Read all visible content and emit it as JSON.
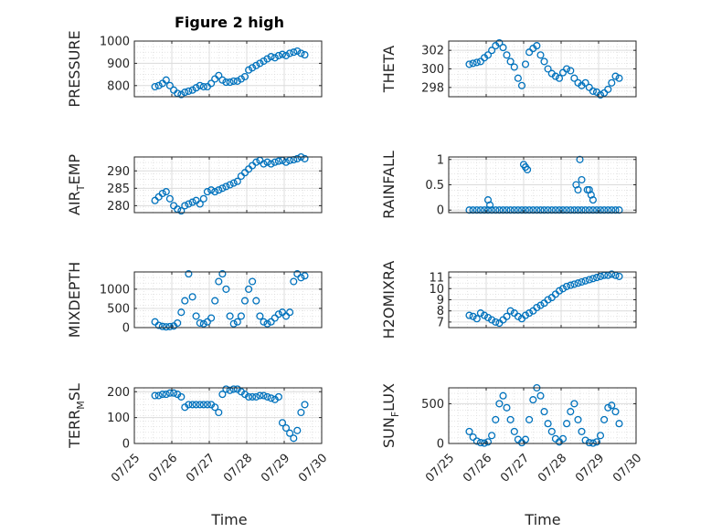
{
  "figure": {
    "title": "Figure 2 high",
    "xlabel": "Time",
    "x_tick_labels": [
      "07/25",
      "07/26",
      "07/27",
      "07/28",
      "07/29",
      "07/30"
    ]
  },
  "chart_data": [
    {
      "type": "scatter",
      "ylabel_main": "PRESSURE",
      "ylabel_sub": "",
      "ylabel_tail": "",
      "ylim": [
        750,
        1000
      ],
      "yticks": [
        800,
        900,
        1000
      ],
      "x": [
        0.55,
        0.65,
        0.75,
        0.85,
        0.95,
        1.05,
        1.15,
        1.25,
        1.35,
        1.45,
        1.55,
        1.65,
        1.75,
        1.85,
        1.95,
        2.05,
        2.15,
        2.25,
        2.35,
        2.45,
        2.55,
        2.65,
        2.75,
        2.85,
        2.95,
        3.05,
        3.15,
        3.25,
        3.35,
        3.45,
        3.55,
        3.65,
        3.75,
        3.85,
        3.95,
        4.05,
        4.15,
        4.25,
        4.35,
        4.45,
        4.55
      ],
      "y": [
        795,
        800,
        810,
        825,
        800,
        780,
        765,
        760,
        770,
        775,
        780,
        790,
        800,
        795,
        795,
        810,
        830,
        845,
        825,
        815,
        815,
        820,
        820,
        830,
        840,
        870,
        880,
        890,
        900,
        910,
        920,
        930,
        925,
        935,
        940,
        935,
        945,
        950,
        955,
        945,
        938
      ],
      "grid": true,
      "marker": "circle",
      "color": "#0072bd"
    },
    {
      "type": "scatter",
      "ylabel_main": "THETA",
      "ylabel_sub": "",
      "ylabel_tail": "",
      "ylim": [
        297,
        303
      ],
      "yticks": [
        298,
        300,
        302
      ],
      "x": [
        0.55,
        0.65,
        0.75,
        0.85,
        0.95,
        1.05,
        1.15,
        1.25,
        1.35,
        1.45,
        1.55,
        1.65,
        1.75,
        1.85,
        1.95,
        2.05,
        2.15,
        2.25,
        2.35,
        2.45,
        2.55,
        2.65,
        2.75,
        2.85,
        2.95,
        3.05,
        3.15,
        3.25,
        3.35,
        3.45,
        3.55,
        3.65,
        3.75,
        3.85,
        3.95,
        4.05,
        4.15,
        4.25,
        4.35,
        4.45,
        4.55
      ],
      "y": [
        300.5,
        300.6,
        300.7,
        300.8,
        301.2,
        301.5,
        302.0,
        302.5,
        302.8,
        302.3,
        301.5,
        300.8,
        300.2,
        299.0,
        298.2,
        300.5,
        301.8,
        302.2,
        302.5,
        301.5,
        300.8,
        300.0,
        299.5,
        299.2,
        299.0,
        299.6,
        300.0,
        299.8,
        299.0,
        298.5,
        298.2,
        298.5,
        298.0,
        297.6,
        297.5,
        297.2,
        297.4,
        297.8,
        298.5,
        299.2,
        299.0
      ],
      "grid": true,
      "marker": "circle",
      "color": "#0072bd"
    },
    {
      "type": "scatter",
      "ylabel_main": "AIR",
      "ylabel_sub": "T",
      "ylabel_tail": "EMP",
      "ylim": [
        278,
        294
      ],
      "yticks": [
        280,
        285,
        290
      ],
      "x": [
        0.55,
        0.65,
        0.75,
        0.85,
        0.95,
        1.05,
        1.15,
        1.25,
        1.35,
        1.45,
        1.55,
        1.65,
        1.75,
        1.85,
        1.95,
        2.05,
        2.15,
        2.25,
        2.35,
        2.45,
        2.55,
        2.65,
        2.75,
        2.85,
        2.95,
        3.05,
        3.15,
        3.25,
        3.35,
        3.45,
        3.55,
        3.65,
        3.75,
        3.85,
        3.95,
        4.05,
        4.15,
        4.25,
        4.35,
        4.45,
        4.55
      ],
      "y": [
        281.5,
        282.5,
        283.5,
        284.0,
        282.0,
        280.0,
        279.0,
        278.5,
        280.0,
        280.5,
        281.0,
        281.5,
        280.5,
        282.0,
        284.0,
        284.5,
        284.0,
        284.5,
        285.0,
        285.5,
        286.0,
        286.5,
        287.0,
        288.5,
        289.5,
        290.5,
        291.5,
        292.5,
        293.0,
        292.0,
        292.5,
        292.0,
        292.5,
        292.8,
        293.0,
        292.5,
        293.0,
        293.2,
        293.5,
        294.0,
        293.5
      ],
      "grid": true,
      "marker": "circle",
      "color": "#0072bd"
    },
    {
      "type": "scatter",
      "ylabel_main": "RAINFALL",
      "ylabel_sub": "",
      "ylabel_tail": "",
      "ylim": [
        -0.05,
        1.05
      ],
      "yticks": [
        0,
        0.5,
        1
      ],
      "x": [
        0.55,
        0.65,
        0.75,
        0.85,
        0.95,
        1.05,
        1.15,
        1.25,
        1.35,
        1.45,
        1.55,
        1.65,
        1.75,
        1.85,
        1.95,
        2.05,
        2.15,
        2.25,
        2.35,
        2.45,
        2.55,
        2.65,
        2.75,
        2.85,
        2.95,
        3.05,
        3.15,
        3.25,
        3.35,
        3.45,
        3.55,
        3.65,
        3.75,
        3.85,
        3.95,
        4.05,
        4.15,
        4.25,
        4.35,
        4.45,
        4.55,
        1.05,
        1.1,
        2.0,
        2.05,
        2.1,
        3.4,
        3.45,
        3.5,
        3.55,
        3.7,
        3.75,
        3.8,
        3.85
      ],
      "y": [
        0,
        0,
        0,
        0,
        0,
        0,
        0,
        0,
        0,
        0,
        0,
        0,
        0,
        0,
        0,
        0,
        0,
        0,
        0,
        0,
        0,
        0,
        0,
        0,
        0,
        0,
        0,
        0,
        0,
        0,
        0,
        0,
        0,
        0,
        0,
        0,
        0,
        0,
        0,
        0,
        0,
        0.2,
        0.1,
        0.9,
        0.85,
        0.8,
        0.5,
        0.4,
        1.0,
        0.6,
        0.4,
        0.4,
        0.3,
        0.2
      ],
      "grid": true,
      "marker": "circle",
      "color": "#0072bd"
    },
    {
      "type": "scatter",
      "ylabel_main": "MIXDEPTH",
      "ylabel_sub": "",
      "ylabel_tail": "",
      "ylim": [
        0,
        1450
      ],
      "yticks": [
        0,
        500,
        1000
      ],
      "x": [
        0.55,
        0.65,
        0.75,
        0.85,
        0.95,
        1.05,
        1.15,
        1.25,
        1.35,
        1.45,
        1.55,
        1.65,
        1.75,
        1.85,
        1.95,
        2.05,
        2.15,
        2.25,
        2.35,
        2.45,
        2.55,
        2.65,
        2.75,
        2.85,
        2.95,
        3.05,
        3.15,
        3.25,
        3.35,
        3.45,
        3.55,
        3.65,
        3.75,
        3.85,
        3.95,
        4.05,
        4.15,
        4.25,
        4.35,
        4.45,
        4.55
      ],
      "y": [
        150,
        60,
        30,
        20,
        25,
        40,
        120,
        400,
        700,
        1400,
        800,
        300,
        120,
        100,
        150,
        250,
        700,
        1200,
        1400,
        1000,
        300,
        100,
        150,
        300,
        700,
        1000,
        1200,
        700,
        300,
        150,
        100,
        150,
        250,
        350,
        400,
        300,
        400,
        1200,
        1400,
        1300,
        1350
      ],
      "grid": true,
      "marker": "circle",
      "color": "#0072bd"
    },
    {
      "type": "scatter",
      "ylabel_main": "H2OMIXRA",
      "ylabel_sub": "",
      "ylabel_tail": "",
      "ylim": [
        6.5,
        11.5
      ],
      "yticks": [
        7,
        8,
        9,
        10,
        11
      ],
      "x": [
        0.55,
        0.65,
        0.75,
        0.85,
        0.95,
        1.05,
        1.15,
        1.25,
        1.35,
        1.45,
        1.55,
        1.65,
        1.75,
        1.85,
        1.95,
        2.05,
        2.15,
        2.25,
        2.35,
        2.45,
        2.55,
        2.65,
        2.75,
        2.85,
        2.95,
        3.05,
        3.15,
        3.25,
        3.35,
        3.45,
        3.55,
        3.65,
        3.75,
        3.85,
        3.95,
        4.05,
        4.15,
        4.25,
        4.35,
        4.45,
        4.55
      ],
      "y": [
        7.6,
        7.5,
        7.3,
        7.8,
        7.6,
        7.4,
        7.2,
        7.0,
        6.9,
        7.2,
        7.5,
        8.0,
        7.8,
        7.5,
        7.3,
        7.6,
        7.8,
        8.0,
        8.3,
        8.5,
        8.7,
        9.0,
        9.2,
        9.5,
        9.8,
        10.0,
        10.2,
        10.3,
        10.4,
        10.5,
        10.6,
        10.7,
        10.8,
        10.9,
        11.0,
        11.1,
        11.2,
        11.2,
        11.3,
        11.2,
        11.1
      ],
      "grid": true,
      "marker": "circle",
      "color": "#0072bd"
    },
    {
      "type": "scatter",
      "ylabel_main": "TERR",
      "ylabel_sub": "M",
      "ylabel_tail": "SL",
      "ylim": [
        0,
        215
      ],
      "yticks": [
        0,
        100,
        200
      ],
      "x": [
        0.55,
        0.65,
        0.75,
        0.85,
        0.95,
        1.05,
        1.15,
        1.25,
        1.35,
        1.45,
        1.55,
        1.65,
        1.75,
        1.85,
        1.95,
        2.05,
        2.15,
        2.25,
        2.35,
        2.45,
        2.55,
        2.65,
        2.75,
        2.85,
        2.95,
        3.05,
        3.15,
        3.25,
        3.35,
        3.45,
        3.55,
        3.65,
        3.75,
        3.85,
        3.95,
        4.05,
        4.15,
        4.25,
        4.35,
        4.45,
        4.55
      ],
      "y": [
        185,
        185,
        190,
        190,
        195,
        195,
        190,
        180,
        140,
        150,
        150,
        150,
        150,
        150,
        150,
        150,
        140,
        120,
        190,
        210,
        205,
        210,
        210,
        200,
        190,
        180,
        180,
        180,
        185,
        185,
        180,
        175,
        170,
        180,
        80,
        60,
        40,
        20,
        50,
        120,
        150
      ],
      "grid": true,
      "marker": "circle",
      "color": "#0072bd"
    },
    {
      "type": "scatter",
      "ylabel_main": "SUN",
      "ylabel_sub": "F",
      "ylabel_tail": "LUX",
      "ylim": [
        0,
        700
      ],
      "yticks": [
        0,
        500
      ],
      "x": [
        0.55,
        0.65,
        0.75,
        0.85,
        0.95,
        1.05,
        1.15,
        1.25,
        1.35,
        1.45,
        1.55,
        1.65,
        1.75,
        1.85,
        1.95,
        2.05,
        2.15,
        2.25,
        2.35,
        2.45,
        2.55,
        2.65,
        2.75,
        2.85,
        2.95,
        3.05,
        3.15,
        3.25,
        3.35,
        3.45,
        3.55,
        3.65,
        3.75,
        3.85,
        3.95,
        4.05,
        4.15,
        4.25,
        4.35,
        4.45,
        4.55
      ],
      "y": [
        150,
        80,
        30,
        10,
        5,
        20,
        100,
        300,
        500,
        600,
        450,
        300,
        150,
        50,
        10,
        50,
        300,
        550,
        700,
        600,
        400,
        250,
        150,
        60,
        20,
        60,
        250,
        400,
        500,
        300,
        150,
        40,
        10,
        5,
        20,
        100,
        300,
        450,
        480,
        400,
        250
      ],
      "grid": true,
      "marker": "circle",
      "color": "#0072bd"
    }
  ]
}
